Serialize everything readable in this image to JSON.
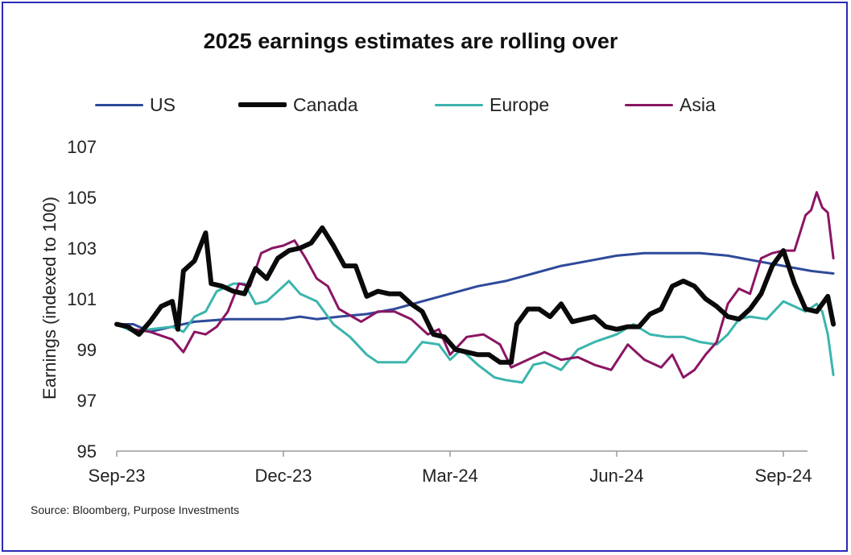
{
  "chart_data": {
    "type": "line",
    "title": "2025 earnings estimates are rolling over",
    "xlabel": "",
    "ylabel": "Earnings (indexed to 100)",
    "source": "Source: Bloomberg, Purpose Investments",
    "x_ticks": [
      "Sep-23",
      "Dec-23",
      "Mar-24",
      "Jun-24",
      "Sep-24"
    ],
    "y_ticks": [
      "95",
      "97",
      "99",
      "101",
      "103",
      "105",
      "107"
    ],
    "ylim": [
      95,
      107
    ],
    "grid": false,
    "legend_position": "top",
    "x_unit": "months since Sep-23",
    "series": [
      {
        "name": "US",
        "color": "#2e4a9a",
        "width": 3,
        "points": [
          [
            0,
            100
          ],
          [
            0.3,
            100
          ],
          [
            0.6,
            99.7
          ],
          [
            1.0,
            99.9
          ],
          [
            1.4,
            100.1
          ],
          [
            2,
            100.2
          ],
          [
            2.5,
            100.2
          ],
          [
            3,
            100.2
          ],
          [
            3.3,
            100.3
          ],
          [
            3.6,
            100.2
          ],
          [
            4,
            100.3
          ],
          [
            4.5,
            100.4
          ],
          [
            5,
            100.6
          ],
          [
            5.5,
            100.9
          ],
          [
            6,
            101.2
          ],
          [
            6.5,
            101.5
          ],
          [
            7,
            101.7
          ],
          [
            7.5,
            102.0
          ],
          [
            8,
            102.3
          ],
          [
            8.5,
            102.5
          ],
          [
            9,
            102.7
          ],
          [
            9.5,
            102.8
          ],
          [
            10,
            102.8
          ],
          [
            10.5,
            102.8
          ],
          [
            11,
            102.7
          ],
          [
            11.5,
            102.5
          ],
          [
            12,
            102.3
          ],
          [
            12.5,
            102.1
          ],
          [
            12.9,
            102.0
          ]
        ]
      },
      {
        "name": "Europe",
        "color": "#3ab5ad",
        "width": 3,
        "points": [
          [
            0,
            100
          ],
          [
            0.3,
            99.7
          ],
          [
            0.6,
            99.8
          ],
          [
            1.0,
            99.9
          ],
          [
            1.2,
            99.7
          ],
          [
            1.4,
            100.3
          ],
          [
            1.6,
            100.5
          ],
          [
            1.8,
            101.3
          ],
          [
            2.1,
            101.6
          ],
          [
            2.3,
            101.6
          ],
          [
            2.5,
            100.8
          ],
          [
            2.7,
            100.9
          ],
          [
            3,
            101.5
          ],
          [
            3.1,
            101.7
          ],
          [
            3.3,
            101.2
          ],
          [
            3.6,
            100.9
          ],
          [
            3.9,
            100
          ],
          [
            4.2,
            99.5
          ],
          [
            4.5,
            98.8
          ],
          [
            4.7,
            98.5
          ],
          [
            5.2,
            98.5
          ],
          [
            5.5,
            99.3
          ],
          [
            5.8,
            99.2
          ],
          [
            6,
            98.6
          ],
          [
            6.2,
            99.0
          ],
          [
            6.5,
            98.4
          ],
          [
            6.8,
            97.9
          ],
          [
            7,
            97.8
          ],
          [
            7.3,
            97.7
          ],
          [
            7.5,
            98.4
          ],
          [
            7.7,
            98.5
          ],
          [
            8,
            98.2
          ],
          [
            8.3,
            99.0
          ],
          [
            8.6,
            99.3
          ],
          [
            9,
            99.6
          ],
          [
            9.3,
            100.0
          ],
          [
            9.6,
            99.6
          ],
          [
            9.9,
            99.5
          ],
          [
            10.2,
            99.5
          ],
          [
            10.5,
            99.3
          ],
          [
            10.8,
            99.2
          ],
          [
            11,
            99.6
          ],
          [
            11.2,
            100.2
          ],
          [
            11.4,
            100.3
          ],
          [
            11.7,
            100.2
          ],
          [
            12,
            100.9
          ],
          [
            12.2,
            100.7
          ],
          [
            12.4,
            100.5
          ],
          [
            12.6,
            100.8
          ],
          [
            12.7,
            100.5
          ],
          [
            12.8,
            99.6
          ],
          [
            12.9,
            98.0
          ]
        ]
      },
      {
        "name": "Asia",
        "color": "#8a1663",
        "width": 3,
        "points": [
          [
            0,
            100
          ],
          [
            0.3,
            99.8
          ],
          [
            0.6,
            99.7
          ],
          [
            1.0,
            99.4
          ],
          [
            1.2,
            98.9
          ],
          [
            1.4,
            99.7
          ],
          [
            1.6,
            99.6
          ],
          [
            1.8,
            99.9
          ],
          [
            2.0,
            100.5
          ],
          [
            2.2,
            101.6
          ],
          [
            2.4,
            101.5
          ],
          [
            2.6,
            102.8
          ],
          [
            2.8,
            103.0
          ],
          [
            3,
            103.1
          ],
          [
            3.2,
            103.3
          ],
          [
            3.4,
            102.6
          ],
          [
            3.6,
            101.8
          ],
          [
            3.8,
            101.5
          ],
          [
            4,
            100.6
          ],
          [
            4.4,
            100.1
          ],
          [
            4.7,
            100.5
          ],
          [
            5,
            100.5
          ],
          [
            5.3,
            100.2
          ],
          [
            5.6,
            99.6
          ],
          [
            5.8,
            99.8
          ],
          [
            6,
            98.8
          ],
          [
            6.3,
            99.5
          ],
          [
            6.6,
            99.6
          ],
          [
            6.9,
            99.2
          ],
          [
            7.1,
            98.3
          ],
          [
            7.4,
            98.6
          ],
          [
            7.7,
            98.9
          ],
          [
            8,
            98.6
          ],
          [
            8.3,
            98.7
          ],
          [
            8.6,
            98.4
          ],
          [
            8.9,
            98.2
          ],
          [
            9.2,
            99.2
          ],
          [
            9.5,
            98.6
          ],
          [
            9.8,
            98.3
          ],
          [
            10.0,
            98.8
          ],
          [
            10.2,
            97.9
          ],
          [
            10.4,
            98.2
          ],
          [
            10.6,
            98.8
          ],
          [
            10.8,
            99.3
          ],
          [
            11,
            100.8
          ],
          [
            11.2,
            101.4
          ],
          [
            11.4,
            101.2
          ],
          [
            11.6,
            102.6
          ],
          [
            11.8,
            102.8
          ],
          [
            12.0,
            102.9
          ],
          [
            12.2,
            102.9
          ],
          [
            12.4,
            104.3
          ],
          [
            12.5,
            104.5
          ],
          [
            12.6,
            105.2
          ],
          [
            12.7,
            104.6
          ],
          [
            12.8,
            104.4
          ],
          [
            12.9,
            102.6
          ]
        ]
      },
      {
        "name": "Canada",
        "color": "#0a0a0a",
        "width": 6,
        "points": [
          [
            0,
            100
          ],
          [
            0.2,
            99.9
          ],
          [
            0.4,
            99.6
          ],
          [
            0.6,
            100.1
          ],
          [
            0.8,
            100.7
          ],
          [
            1.0,
            100.9
          ],
          [
            1.1,
            99.8
          ],
          [
            1.2,
            102.1
          ],
          [
            1.4,
            102.5
          ],
          [
            1.6,
            103.6
          ],
          [
            1.7,
            101.6
          ],
          [
            1.9,
            101.5
          ],
          [
            2.1,
            101.3
          ],
          [
            2.3,
            101.2
          ],
          [
            2.5,
            102.2
          ],
          [
            2.7,
            101.8
          ],
          [
            2.9,
            102.6
          ],
          [
            3.1,
            102.9
          ],
          [
            3.3,
            103.0
          ],
          [
            3.5,
            103.2
          ],
          [
            3.7,
            103.8
          ],
          [
            3.9,
            103.1
          ],
          [
            4.1,
            102.3
          ],
          [
            4.3,
            102.3
          ],
          [
            4.5,
            101.1
          ],
          [
            4.7,
            101.3
          ],
          [
            4.9,
            101.2
          ],
          [
            5.1,
            101.2
          ],
          [
            5.3,
            100.8
          ],
          [
            5.5,
            100.5
          ],
          [
            5.7,
            99.6
          ],
          [
            5.9,
            99.5
          ],
          [
            6.1,
            99.0
          ],
          [
            6.3,
            98.9
          ],
          [
            6.5,
            98.8
          ],
          [
            6.7,
            98.8
          ],
          [
            6.9,
            98.5
          ],
          [
            7.1,
            98.5
          ],
          [
            7.2,
            100.0
          ],
          [
            7.4,
            100.6
          ],
          [
            7.6,
            100.6
          ],
          [
            7.8,
            100.3
          ],
          [
            8.0,
            100.8
          ],
          [
            8.2,
            100.1
          ],
          [
            8.4,
            100.2
          ],
          [
            8.6,
            100.3
          ],
          [
            8.8,
            99.9
          ],
          [
            9.0,
            99.8
          ],
          [
            9.2,
            99.9
          ],
          [
            9.4,
            99.9
          ],
          [
            9.6,
            100.4
          ],
          [
            9.8,
            100.6
          ],
          [
            10.0,
            101.5
          ],
          [
            10.2,
            101.7
          ],
          [
            10.4,
            101.5
          ],
          [
            10.6,
            101.0
          ],
          [
            10.8,
            100.7
          ],
          [
            11.0,
            100.3
          ],
          [
            11.2,
            100.2
          ],
          [
            11.4,
            100.6
          ],
          [
            11.6,
            101.2
          ],
          [
            11.8,
            102.3
          ],
          [
            12.0,
            102.9
          ],
          [
            12.2,
            101.6
          ],
          [
            12.4,
            100.6
          ],
          [
            12.6,
            100.5
          ],
          [
            12.8,
            101.1
          ],
          [
            12.9,
            100.0
          ]
        ]
      }
    ]
  }
}
